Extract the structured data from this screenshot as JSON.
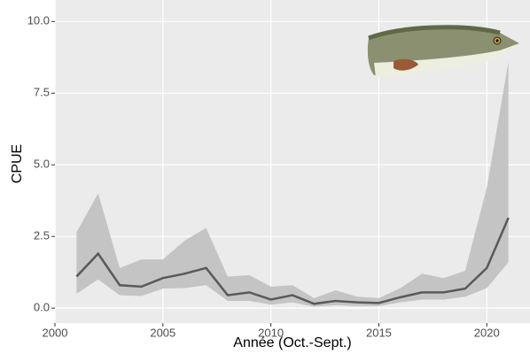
{
  "chart_data": {
    "type": "line",
    "x_label": "Année (Oct.-Sept.)",
    "y_label": "CPUE",
    "x": [
      2001,
      2002,
      2003,
      2004,
      2005,
      2006,
      2007,
      2008,
      2009,
      2010,
      2011,
      2012,
      2013,
      2014,
      2015,
      2016,
      2017,
      2018,
      2019,
      2020,
      2021
    ],
    "values": [
      1.1,
      1.9,
      0.8,
      0.75,
      1.05,
      1.2,
      1.4,
      0.45,
      0.55,
      0.3,
      0.45,
      0.15,
      0.25,
      0.2,
      0.18,
      0.38,
      0.55,
      0.55,
      0.68,
      1.4,
      3.15
    ],
    "upper": [
      2.65,
      4.0,
      1.4,
      1.7,
      1.7,
      2.35,
      2.8,
      1.1,
      1.15,
      0.75,
      0.8,
      0.35,
      0.62,
      0.4,
      0.35,
      0.7,
      1.2,
      1.05,
      1.3,
      4.2,
      8.6
    ],
    "lower": [
      0.5,
      1.0,
      0.45,
      0.42,
      0.68,
      0.7,
      0.8,
      0.25,
      0.25,
      0.12,
      0.2,
      0.05,
      0.1,
      0.07,
      0.07,
      0.2,
      0.3,
      0.3,
      0.4,
      0.7,
      1.6
    ],
    "line_color": "#595959",
    "band_color": "#c4c4c4",
    "xlim": [
      2000,
      2022
    ],
    "xticks": [
      2000,
      2005,
      2010,
      2015,
      2020
    ],
    "ylim": [
      -0.52,
      10.75
    ],
    "yticks": [
      {
        "value": 0,
        "label": "0.0"
      },
      2.5,
      {
        "value": 5,
        "label": "5.0"
      },
      7.5,
      {
        "value": 10,
        "label": "10.0"
      }
    ],
    "grid": true
  }
}
